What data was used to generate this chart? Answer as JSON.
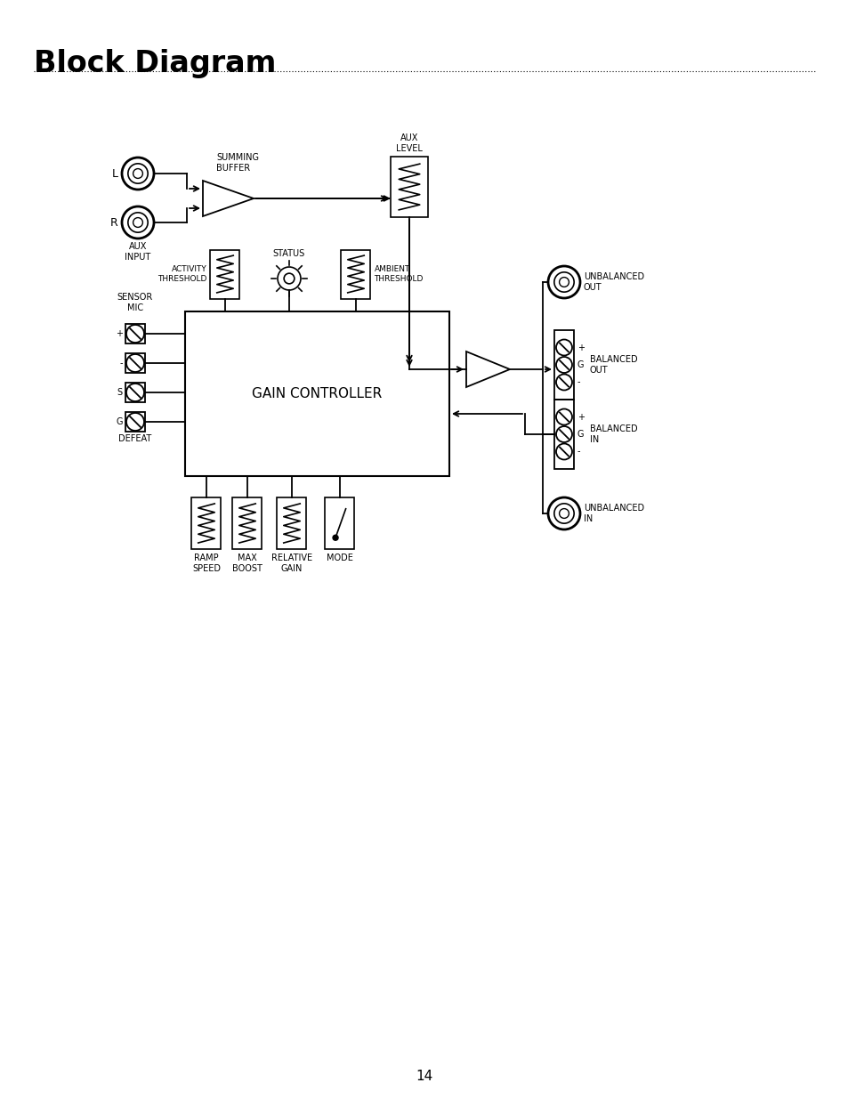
{
  "title": "Block Diagram",
  "page_number": "14",
  "bg_color": "#ffffff",
  "line_color": "#000000",
  "title_fontsize": 24,
  "label_fontsize": 7,
  "diagram": {
    "gain_controller": {
      "label": "GAIN CONTROLLER"
    },
    "summing_buffer": {
      "label": "SUMMING\nBUFFER"
    },
    "aux_level": {
      "label": "AUX\nLEVEL"
    },
    "activity_threshold": {
      "label": "ACTIVITY\nTHRESHOLD"
    },
    "status": {
      "label": "STATUS"
    },
    "ambient_threshold": {
      "label": "AMBIENT\nTHRESHOLD"
    },
    "sensor_mic": {
      "label": "SENSOR\nMIC"
    },
    "defeat": {
      "label": "DEFEAT"
    },
    "ramp_speed": {
      "label": "RAMP\nSPEED"
    },
    "max_boost": {
      "label": "MAX\nBOOST"
    },
    "relative_gain": {
      "label": "RELATIVE\nGAIN"
    },
    "mode": {
      "label": "MODE"
    },
    "unbalanced_out": {
      "label": "UNBALANCED\nOUT"
    },
    "balanced_out": {
      "label": "BALANCED\nOUT"
    },
    "balanced_in": {
      "label": "BALANCED\nIN"
    },
    "unbalanced_in": {
      "label": "UNBALANCED\nIN"
    },
    "L": {
      "label": "L"
    },
    "R": {
      "label": "R"
    },
    "aux_input": {
      "label": "AUX\nINPUT"
    }
  }
}
